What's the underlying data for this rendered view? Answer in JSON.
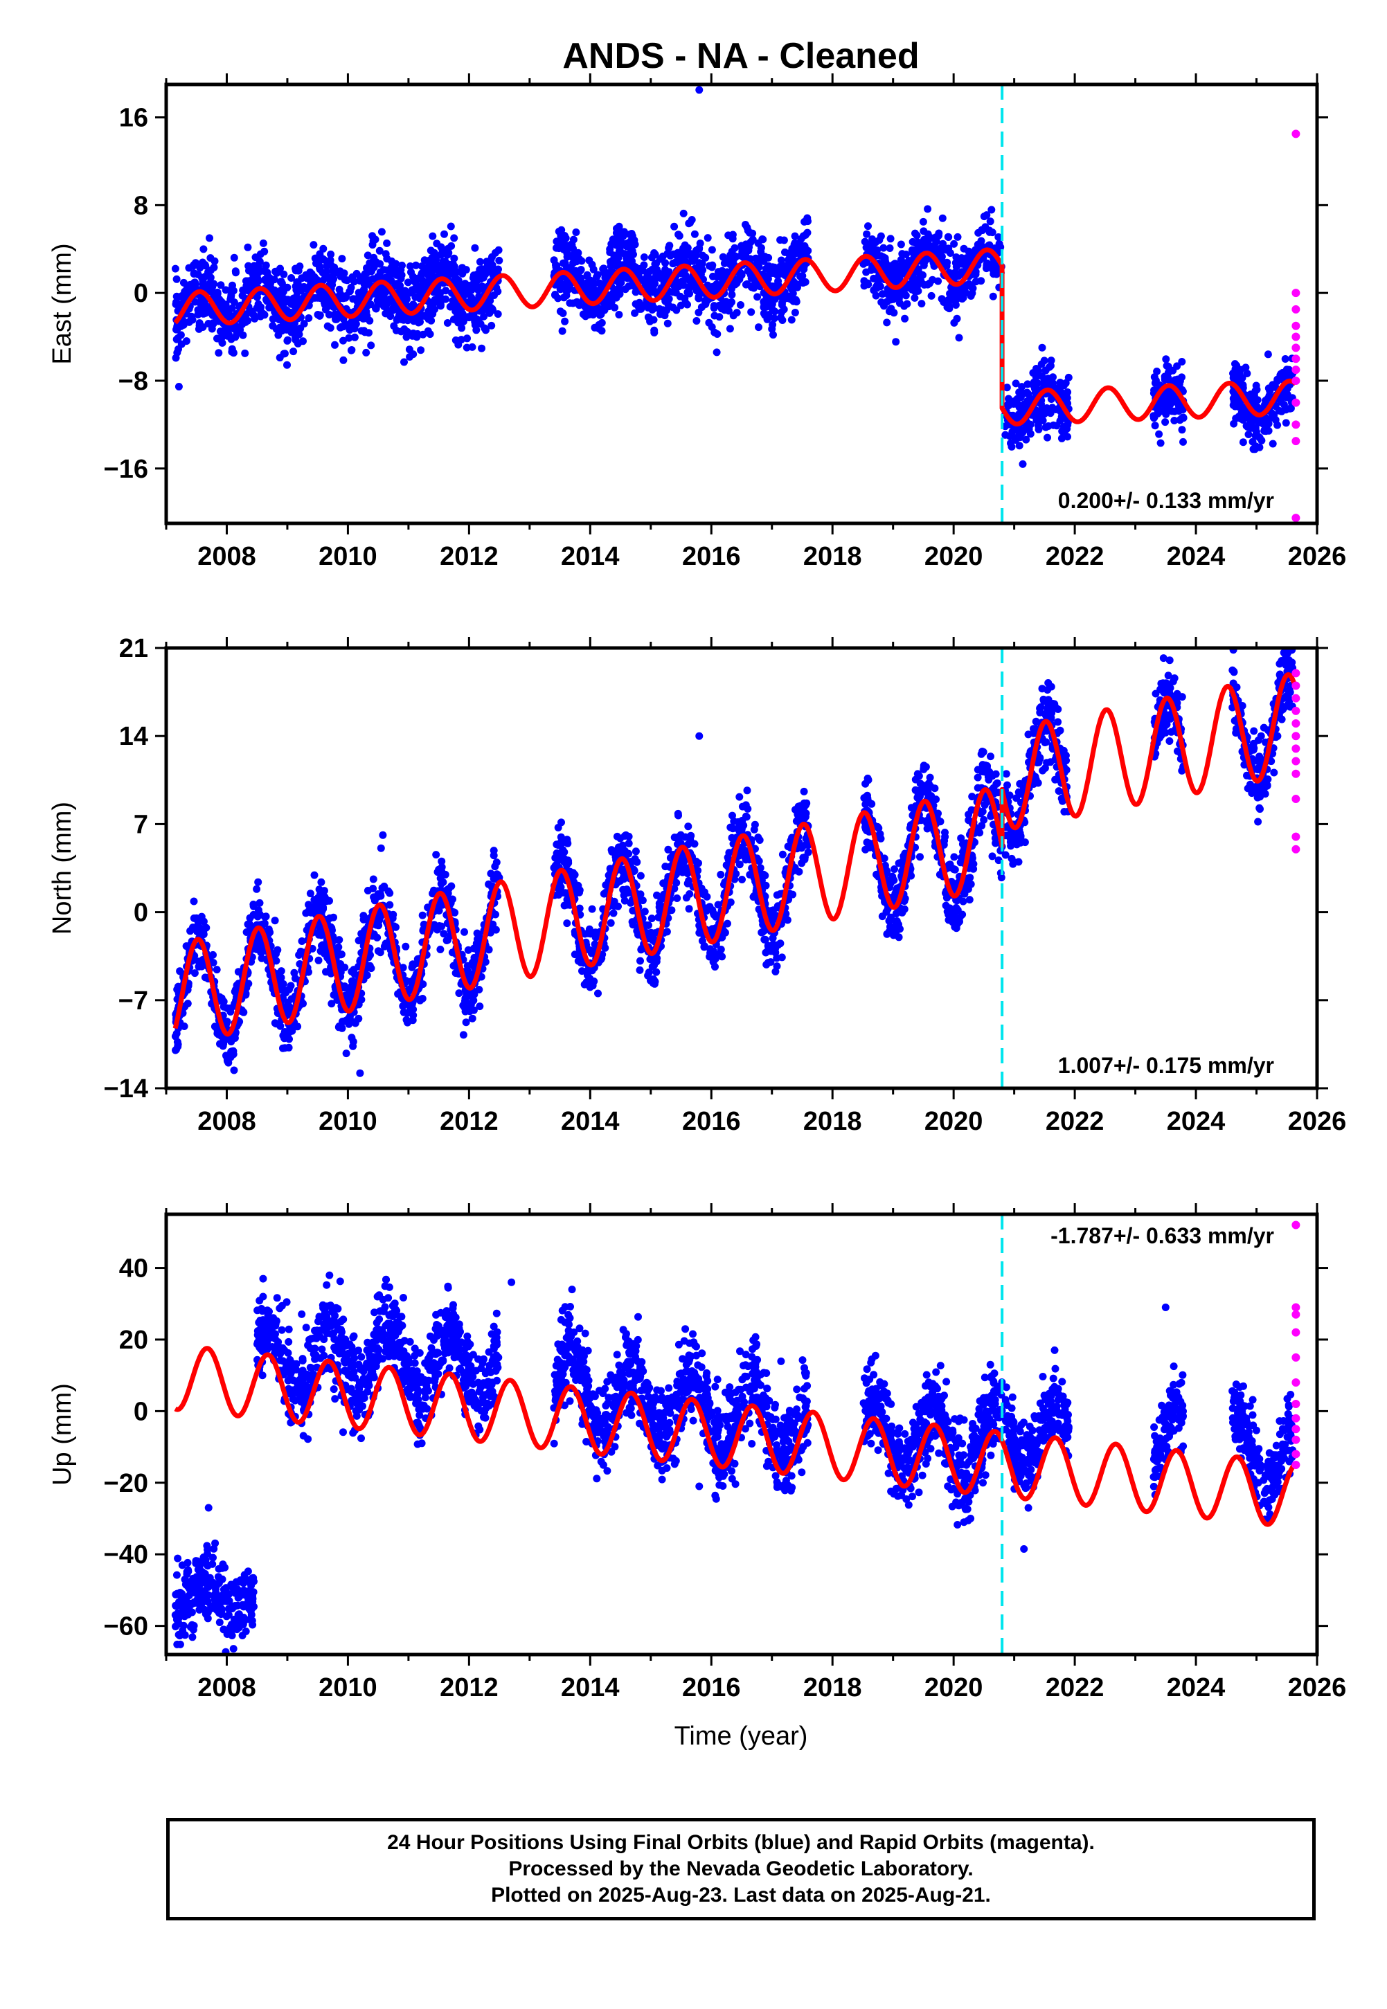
{
  "title": "ANDS  - NA - Cleaned",
  "xlabel": "Time (year)",
  "footer": {
    "line1": "24 Hour Positions Using Final Orbits (blue) and Rapid Orbits (magenta).",
    "line2": "Processed by the Nevada Geodetic Laboratory.",
    "line3": "Plotted on 2025-Aug-23. Last data on 2025-Aug-21."
  },
  "colors": {
    "final": "#0000ff",
    "rapid": "#ff00ff",
    "model": "#ff0000",
    "event": "#00e5ee"
  },
  "chart_data": [
    {
      "type": "scatter",
      "name": "east",
      "ylabel": "East (mm)",
      "ylim": [
        -21,
        19
      ],
      "yticks": [
        -16,
        -8,
        0,
        8,
        16
      ],
      "xlim": [
        2007.0,
        2026.0
      ],
      "xticks": [
        2008,
        2010,
        2012,
        2014,
        2016,
        2018,
        2020,
        2022,
        2024,
        2026
      ],
      "rate": "0.200+/- 0.133 mm/yr",
      "event_line": 2020.8,
      "model": {
        "amp": 1.5,
        "phase": 0.55,
        "segments": [
          {
            "x0": 2007.15,
            "x1": 2020.8,
            "y0": -1.5,
            "y1": 2.5
          },
          {
            "x0": 2020.8,
            "x1": 2025.65,
            "y0": -10.5,
            "y1": -9.5
          }
        ]
      },
      "final_segments": [
        {
          "x0": 2007.15,
          "x1": 2012.5,
          "y0": -1.5,
          "y1": 0.5,
          "spread": 1.8
        },
        {
          "x0": 2013.4,
          "x1": 2017.6,
          "y0": 1.0,
          "y1": 1.5,
          "spread": 1.8
        },
        {
          "x0": 2018.5,
          "x1": 2020.8,
          "y0": 2.0,
          "y1": 2.5,
          "spread": 1.5
        },
        {
          "x0": 2020.85,
          "x1": 2021.9,
          "y0": -10.5,
          "y1": -10.0,
          "spread": 1.5
        },
        {
          "x0": 2023.3,
          "x1": 2023.8,
          "y0": -10.5,
          "y1": -10.5,
          "spread": 1.5
        },
        {
          "x0": 2024.6,
          "x1": 2025.6,
          "y0": -10.0,
          "y1": -10.0,
          "spread": 1.5
        }
      ],
      "outliers": [
        [
          2015.8,
          18.5
        ],
        [
          2008.3,
          -5.5
        ]
      ],
      "rapid": {
        "x": 2025.65,
        "y": [
          14.5,
          0,
          -1.5,
          -3,
          -4,
          -5,
          -6,
          -7,
          -8,
          -10,
          -12,
          -13.5,
          -20.5
        ]
      }
    },
    {
      "type": "scatter",
      "name": "north",
      "ylabel": "North (mm)",
      "ylim": [
        -14,
        21
      ],
      "yticks": [
        -14,
        -7,
        0,
        7,
        14,
        21
      ],
      "xlim": [
        2007.0,
        2026.0
      ],
      "xticks": [
        2008,
        2010,
        2012,
        2014,
        2016,
        2018,
        2020,
        2022,
        2024,
        2026
      ],
      "rate": "1.007+/- 0.175 mm/yr",
      "event_line": 2020.8,
      "model": {
        "amp": 4.0,
        "phase": 0.52,
        "segments": [
          {
            "x0": 2007.15,
            "x1": 2020.8,
            "y0": -6.5,
            "y1": 6.0
          },
          {
            "x0": 2020.8,
            "x1": 2025.65,
            "y0": 10.5,
            "y1": 15.0
          }
        ]
      },
      "final_segments": [
        {
          "x0": 2007.15,
          "x1": 2012.5,
          "y0": -6.5,
          "y1": -1.5,
          "spread": 1.5
        },
        {
          "x0": 2013.4,
          "x1": 2017.6,
          "y0": -0.5,
          "y1": 3.0,
          "spread": 1.5
        },
        {
          "x0": 2018.5,
          "x1": 2020.8,
          "y0": 4.0,
          "y1": 6.0,
          "spread": 1.5
        },
        {
          "x0": 2020.85,
          "x1": 2021.9,
          "y0": 10.5,
          "y1": 11.5,
          "spread": 1.5
        },
        {
          "x0": 2023.3,
          "x1": 2023.8,
          "y0": 13.0,
          "y1": 13.5,
          "spread": 1.5
        },
        {
          "x0": 2024.6,
          "x1": 2025.6,
          "y0": 14.0,
          "y1": 15.0,
          "spread": 1.5
        }
      ],
      "outliers": [
        [
          2015.8,
          14.0
        ],
        [
          2010.2,
          -12.8
        ],
        [
          2025.6,
          21.5
        ]
      ],
      "rapid": {
        "x": 2025.65,
        "y": [
          19,
          18,
          17,
          16,
          15,
          14,
          13,
          12,
          11,
          9,
          6,
          5
        ]
      }
    },
    {
      "type": "scatter",
      "name": "up",
      "ylabel": "Up (mm)",
      "ylim": [
        -68,
        55
      ],
      "yticks": [
        -60,
        -40,
        -20,
        0,
        20,
        40
      ],
      "xlim": [
        2007.0,
        2026.0
      ],
      "xticks": [
        2008,
        2010,
        2012,
        2014,
        2016,
        2018,
        2020,
        2022,
        2024,
        2026
      ],
      "rate": "-1.787+/- 0.633 mm/yr",
      "event_line": 2020.8,
      "model": {
        "amp": 9.0,
        "phase": 0.68,
        "segments": [
          {
            "x0": 2007.15,
            "x1": 2025.65,
            "y0": 9.5,
            "y1": -23.5
          }
        ]
      },
      "final_segments": [
        {
          "x0": 2007.15,
          "x1": 2008.45,
          "y0": -52,
          "y1": -52,
          "spread": 5.0,
          "amp": 4
        },
        {
          "x0": 2008.5,
          "x1": 2012.5,
          "y0": 14,
          "y1": 14,
          "spread": 6.0
        },
        {
          "x0": 2013.4,
          "x1": 2017.6,
          "y0": 6,
          "y1": -4,
          "spread": 6.0
        },
        {
          "x0": 2018.5,
          "x1": 2020.8,
          "y0": -6,
          "y1": -10,
          "spread": 6.0
        },
        {
          "x0": 2020.85,
          "x1": 2021.9,
          "y0": -5,
          "y1": -7,
          "spread": 5.0
        },
        {
          "x0": 2023.3,
          "x1": 2023.8,
          "y0": -8,
          "y1": -8,
          "spread": 5.0
        },
        {
          "x0": 2024.6,
          "x1": 2025.6,
          "y0": -10,
          "y1": -12,
          "spread": 5.0
        }
      ],
      "outliers": [
        [
          2008.6,
          37
        ],
        [
          2012.7,
          36
        ],
        [
          2013.7,
          34
        ],
        [
          2015.8,
          -21
        ],
        [
          2023.5,
          29
        ],
        [
          2007.7,
          -27
        ]
      ],
      "rapid": {
        "x": 2025.65,
        "y": [
          52,
          29,
          27,
          22,
          15,
          8,
          2,
          -2,
          -5,
          -8,
          -12,
          -15
        ]
      }
    }
  ]
}
